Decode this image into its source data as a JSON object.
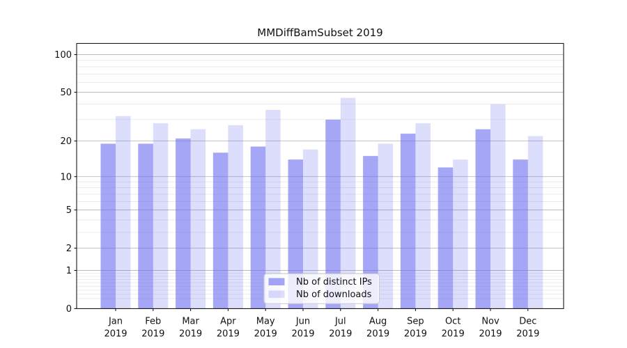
{
  "chart_data": {
    "type": "bar",
    "title": "MMDiffBamSubset 2019",
    "categories": [
      "Jan",
      "Feb",
      "Mar",
      "Apr",
      "May",
      "Jun",
      "Jul",
      "Aug",
      "Sep",
      "Oct",
      "Nov",
      "Dec"
    ],
    "x_year_label": "2019",
    "series": [
      {
        "name": "Nb of distinct IPs",
        "key": "distinct-ips",
        "color": "#6666f0",
        "fill_opacity": 0.58,
        "values": [
          19,
          19,
          21,
          16,
          18,
          14,
          30,
          15,
          23,
          12,
          25,
          14
        ]
      },
      {
        "name": "Nb of downloads",
        "key": "downloads",
        "color": "#6666f0",
        "fill_opacity": 0.22,
        "values": [
          32,
          28,
          25,
          27,
          36,
          17,
          45,
          19,
          28,
          14,
          40,
          22
        ]
      }
    ],
    "yscale": "log1p",
    "yticks": [
      0,
      1,
      2,
      5,
      10,
      20,
      50,
      100
    ],
    "minor_gridline_values": [
      0.2,
      0.3,
      0.4,
      0.5,
      0.6,
      0.7,
      0.8,
      0.9,
      3,
      4,
      6,
      7,
      8,
      9,
      30,
      40,
      60,
      70,
      80,
      90
    ],
    "ylim": [
      0,
      121
    ],
    "grid": true,
    "legend_position": "bottom-center",
    "colors": {
      "major_grid": "#b0b0b0",
      "minor_grid": "#e9e9e9",
      "axis": "#000000",
      "text": "#111111",
      "legend_border": "#cccccc",
      "legend_bg_rgba": "rgba(255,255,255,0.8)"
    }
  }
}
